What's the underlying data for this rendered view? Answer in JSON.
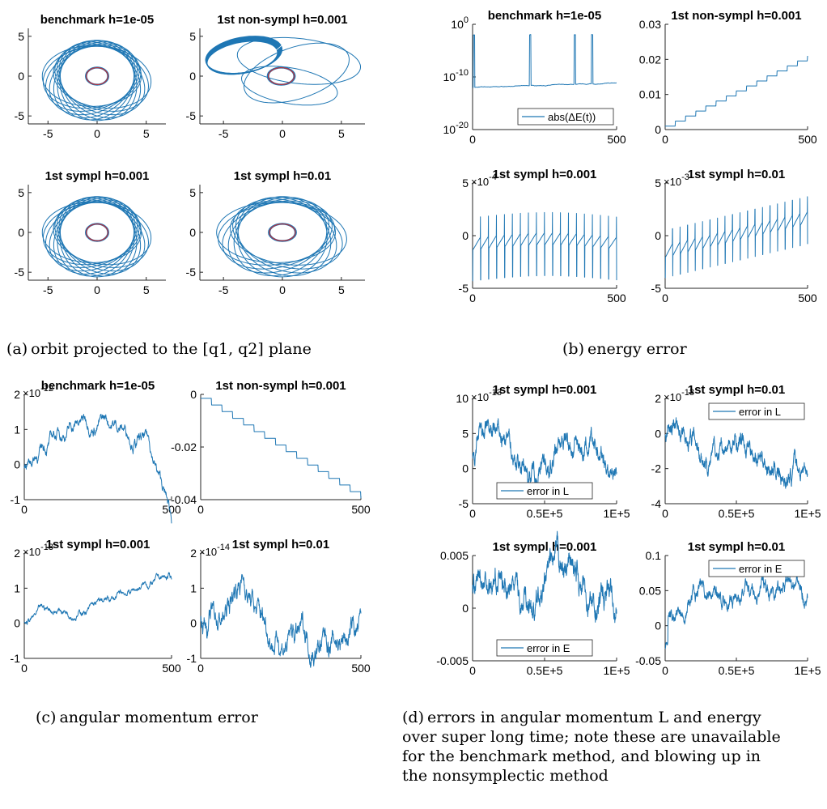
{
  "figure": {
    "series_color": "#1f77b4",
    "inner_orbit_color": "#d62728",
    "captions": [
      {
        "label": "(a)",
        "text": "orbit projected to the [q1, q2] plane"
      },
      {
        "label": "(b)",
        "text": "energy error"
      },
      {
        "label": "(c)",
        "text": "angular momentum error"
      },
      {
        "label": "(d)",
        "text": "errors in angular momentum L and energy",
        "more": [
          "over super long time; note these are unavailable",
          "for the benchmark method, and blowing up in",
          "the nonsymplectic method"
        ]
      }
    ]
  },
  "chart_data": [
    {
      "id": "a1",
      "type": "line",
      "panel": "(a)",
      "title": "benchmark h=1e-05",
      "xlim": [
        -7,
        7
      ],
      "ylim": [
        -6,
        6
      ],
      "xticks": [
        -5,
        0,
        5
      ],
      "yticks": [
        -5,
        0,
        5
      ],
      "xtick_labels": [
        "-5",
        "0",
        "5"
      ],
      "ytick_labels": [
        "5",
        "0",
        "-5"
      ],
      "series": [
        {
          "values": "orbit: precessing ellipse, semi-axes ~5.5 x ~3.8, ~12 lobes, with inner circle radius ~1"
        }
      ]
    },
    {
      "id": "a2",
      "type": "line",
      "panel": "(a)",
      "title": "1st non-sympl h=0.001",
      "xlim": [
        -7,
        7
      ],
      "ylim": [
        -6,
        6
      ],
      "xticks": [
        -5,
        0,
        5
      ],
      "yticks": [
        -5,
        0,
        5
      ],
      "xtick_labels": [
        "-5",
        "0",
        "5"
      ],
      "ytick_labels": [
        "5",
        "0",
        "-5"
      ],
      "series": [
        {
          "values": "orbit spiraling outward: dense band at x -7..-1, y 0..5"
        }
      ]
    },
    {
      "id": "a3",
      "type": "line",
      "panel": "(a)",
      "title": "1st sympl h=0.001",
      "xlim": [
        -7,
        7
      ],
      "ylim": [
        -6,
        6
      ],
      "xticks": [
        -5,
        0,
        5
      ],
      "yticks": [
        -5,
        0,
        5
      ],
      "xtick_labels": [
        "-5",
        "0",
        "5"
      ],
      "ytick_labels": [
        "5",
        "0",
        "-5"
      ],
      "series": [
        {
          "values": "orbit: precessing ellipse rosette"
        }
      ]
    },
    {
      "id": "a4",
      "type": "line",
      "panel": "(a)",
      "title": "1st sympl h=0.01",
      "xlim": [
        -7,
        7
      ],
      "ylim": [
        -6,
        6
      ],
      "xticks": [
        -5,
        0,
        5
      ],
      "yticks": [
        -5,
        0,
        5
      ],
      "xtick_labels": [
        "-5",
        "0",
        "5"
      ],
      "ytick_labels": [
        "5",
        "0",
        "-5"
      ],
      "series": [
        {
          "values": "orbit: precessing ellipse rosette"
        }
      ]
    },
    {
      "id": "b1",
      "type": "line",
      "panel": "(b)",
      "title": "benchmark h=1e-05",
      "xlim": [
        0,
        500
      ],
      "ylim": [
        -20,
        0
      ],
      "xtick_labels": [
        "0",
        "500"
      ],
      "ytick_labels": [
        "10^0",
        "10^-10",
        "10^-20"
      ],
      "legend": "abs(ΔE(t))",
      "series": [
        {
          "name": "abs(ΔE(t))",
          "values": "log10 ~ -12 with spikes near x=0, 200, 350, 400"
        }
      ]
    },
    {
      "id": "b2",
      "type": "line",
      "panel": "(b)",
      "title": "1st non-sympl h=0.001",
      "xlim": [
        0,
        500
      ],
      "ylim": [
        0,
        0.03
      ],
      "xtick_labels": [
        "0",
        "500"
      ],
      "ytick_labels": [
        "0.03",
        "0.02",
        "0.01",
        "0"
      ],
      "series": [
        {
          "values": "staircase rising from 0 to 0.02"
        }
      ]
    },
    {
      "id": "b3",
      "type": "line",
      "panel": "(b)",
      "title": "1st sympl h=0.001",
      "exponent": "×10^-4",
      "xlim": [
        0,
        500
      ],
      "ylim": [
        -5,
        5
      ],
      "xtick_labels": [
        "0",
        "500"
      ],
      "ytick_labels": [
        "5",
        "0",
        "-5"
      ],
      "series": [
        {
          "values": "oscillating spikes between about -4.5 and 3"
        }
      ]
    },
    {
      "id": "b4",
      "type": "line",
      "panel": "(b)",
      "title": "1st sympl h=0.01",
      "exponent": "×10^-3",
      "xlim": [
        0,
        500
      ],
      "ylim": [
        -5,
        5
      ],
      "xtick_labels": [
        "0",
        "500"
      ],
      "ytick_labels": [
        "5",
        "0",
        "-5"
      ],
      "series": [
        {
          "values": "sawtooth spikes drifting upward to about 4"
        }
      ]
    },
    {
      "id": "c1",
      "type": "line",
      "panel": "(c)",
      "title": "benchmark h=1e-05",
      "exponent": "×10^-12",
      "xlim": [
        0,
        500
      ],
      "ylim": [
        -1,
        2
      ],
      "xtick_labels": [
        "0",
        "500"
      ],
      "ytick_labels": [
        "2",
        "1",
        "0",
        "-1"
      ],
      "series": [
        {
          "values": "noisy hump from 0 up to ~1.4 near 300, then down to -0.9"
        }
      ]
    },
    {
      "id": "c2",
      "type": "line",
      "panel": "(c)",
      "title": "1st non-sympl h=0.001",
      "xlim": [
        0,
        500
      ],
      "ylim": [
        -0.04,
        0
      ],
      "xtick_labels": [
        "0",
        "500"
      ],
      "ytick_labels": [
        "0",
        "-0.02",
        "-0.04"
      ],
      "series": [
        {
          "values": "staircase decreasing from 0 to -0.038"
        }
      ]
    },
    {
      "id": "c3",
      "type": "line",
      "panel": "(c)",
      "title": "1st sympl h=0.001",
      "exponent": "×10^-13",
      "xlim": [
        0,
        500
      ],
      "ylim": [
        -1,
        2
      ],
      "xtick_labels": [
        "0",
        "500"
      ],
      "ytick_labels": [
        "2",
        "1",
        "0",
        "-1"
      ],
      "series": [
        {
          "values": "noisy rise from 0 to ~1.3"
        }
      ]
    },
    {
      "id": "c4",
      "type": "line",
      "panel": "(c)",
      "title": "1st sympl h=0.01",
      "exponent": "×10^-14",
      "xlim": [
        0,
        500
      ],
      "ylim": [
        -1,
        2
      ],
      "xtick_labels": [
        "0",
        "500"
      ],
      "ytick_labels": [
        "2",
        "1",
        "0",
        "-1"
      ],
      "series": [
        {
          "values": "noisy, peak ~1.5 near 100, ending ~-0.5"
        }
      ]
    },
    {
      "id": "d1",
      "type": "line",
      "panel": "(d)",
      "title": "1st sympl h=0.001",
      "exponent": "×10^-13",
      "xlim": [
        0,
        100000
      ],
      "ylim": [
        -5,
        10
      ],
      "xtick_labels": [
        "0",
        "0.5E+5",
        "1E+5"
      ],
      "ytick_labels": [
        "10",
        "5",
        "0",
        "-5"
      ],
      "legend": "error in L",
      "series": [
        {
          "name": "error in L",
          "values": "noisy around 2, between -1 and 6"
        }
      ]
    },
    {
      "id": "d2",
      "type": "line",
      "panel": "(d)",
      "title": "1st sympl h=0.01",
      "exponent": "×10^-13",
      "xlim": [
        0,
        100000
      ],
      "ylim": [
        -4,
        2
      ],
      "xtick_labels": [
        "0",
        "0.5E+5",
        "1E+5"
      ],
      "ytick_labels": [
        "2",
        "0",
        "-2",
        "-4"
      ],
      "legend": "error in L",
      "series": [
        {
          "name": "error in L",
          "values": "noisy, drifting from 0 to about -2"
        }
      ]
    },
    {
      "id": "d3",
      "type": "line",
      "panel": "(d)",
      "title": "1st sympl h=0.001",
      "xlim": [
        0,
        100000
      ],
      "ylim": [
        -0.005,
        0.005
      ],
      "xtick_labels": [
        "0",
        "0.5E+5",
        "1E+5"
      ],
      "ytick_labels": [
        "0.005",
        "0",
        "-0.005"
      ],
      "legend": "error in E",
      "series": [
        {
          "name": "error in E",
          "values": "noisy around 0.002"
        }
      ]
    },
    {
      "id": "d4",
      "type": "line",
      "panel": "(d)",
      "title": "1st sympl h=0.01",
      "xlim": [
        0,
        100000
      ],
      "ylim": [
        -0.05,
        0.1
      ],
      "xtick_labels": [
        "0",
        "0.5E+5",
        "1E+5"
      ],
      "ytick_labels": [
        "0.1",
        "0.05",
        "0",
        "-0.05"
      ],
      "legend": "error in E",
      "series": [
        {
          "name": "error in E",
          "values": "rises to ~0.05 plateau, dips to ~0.03 at end"
        }
      ]
    }
  ]
}
